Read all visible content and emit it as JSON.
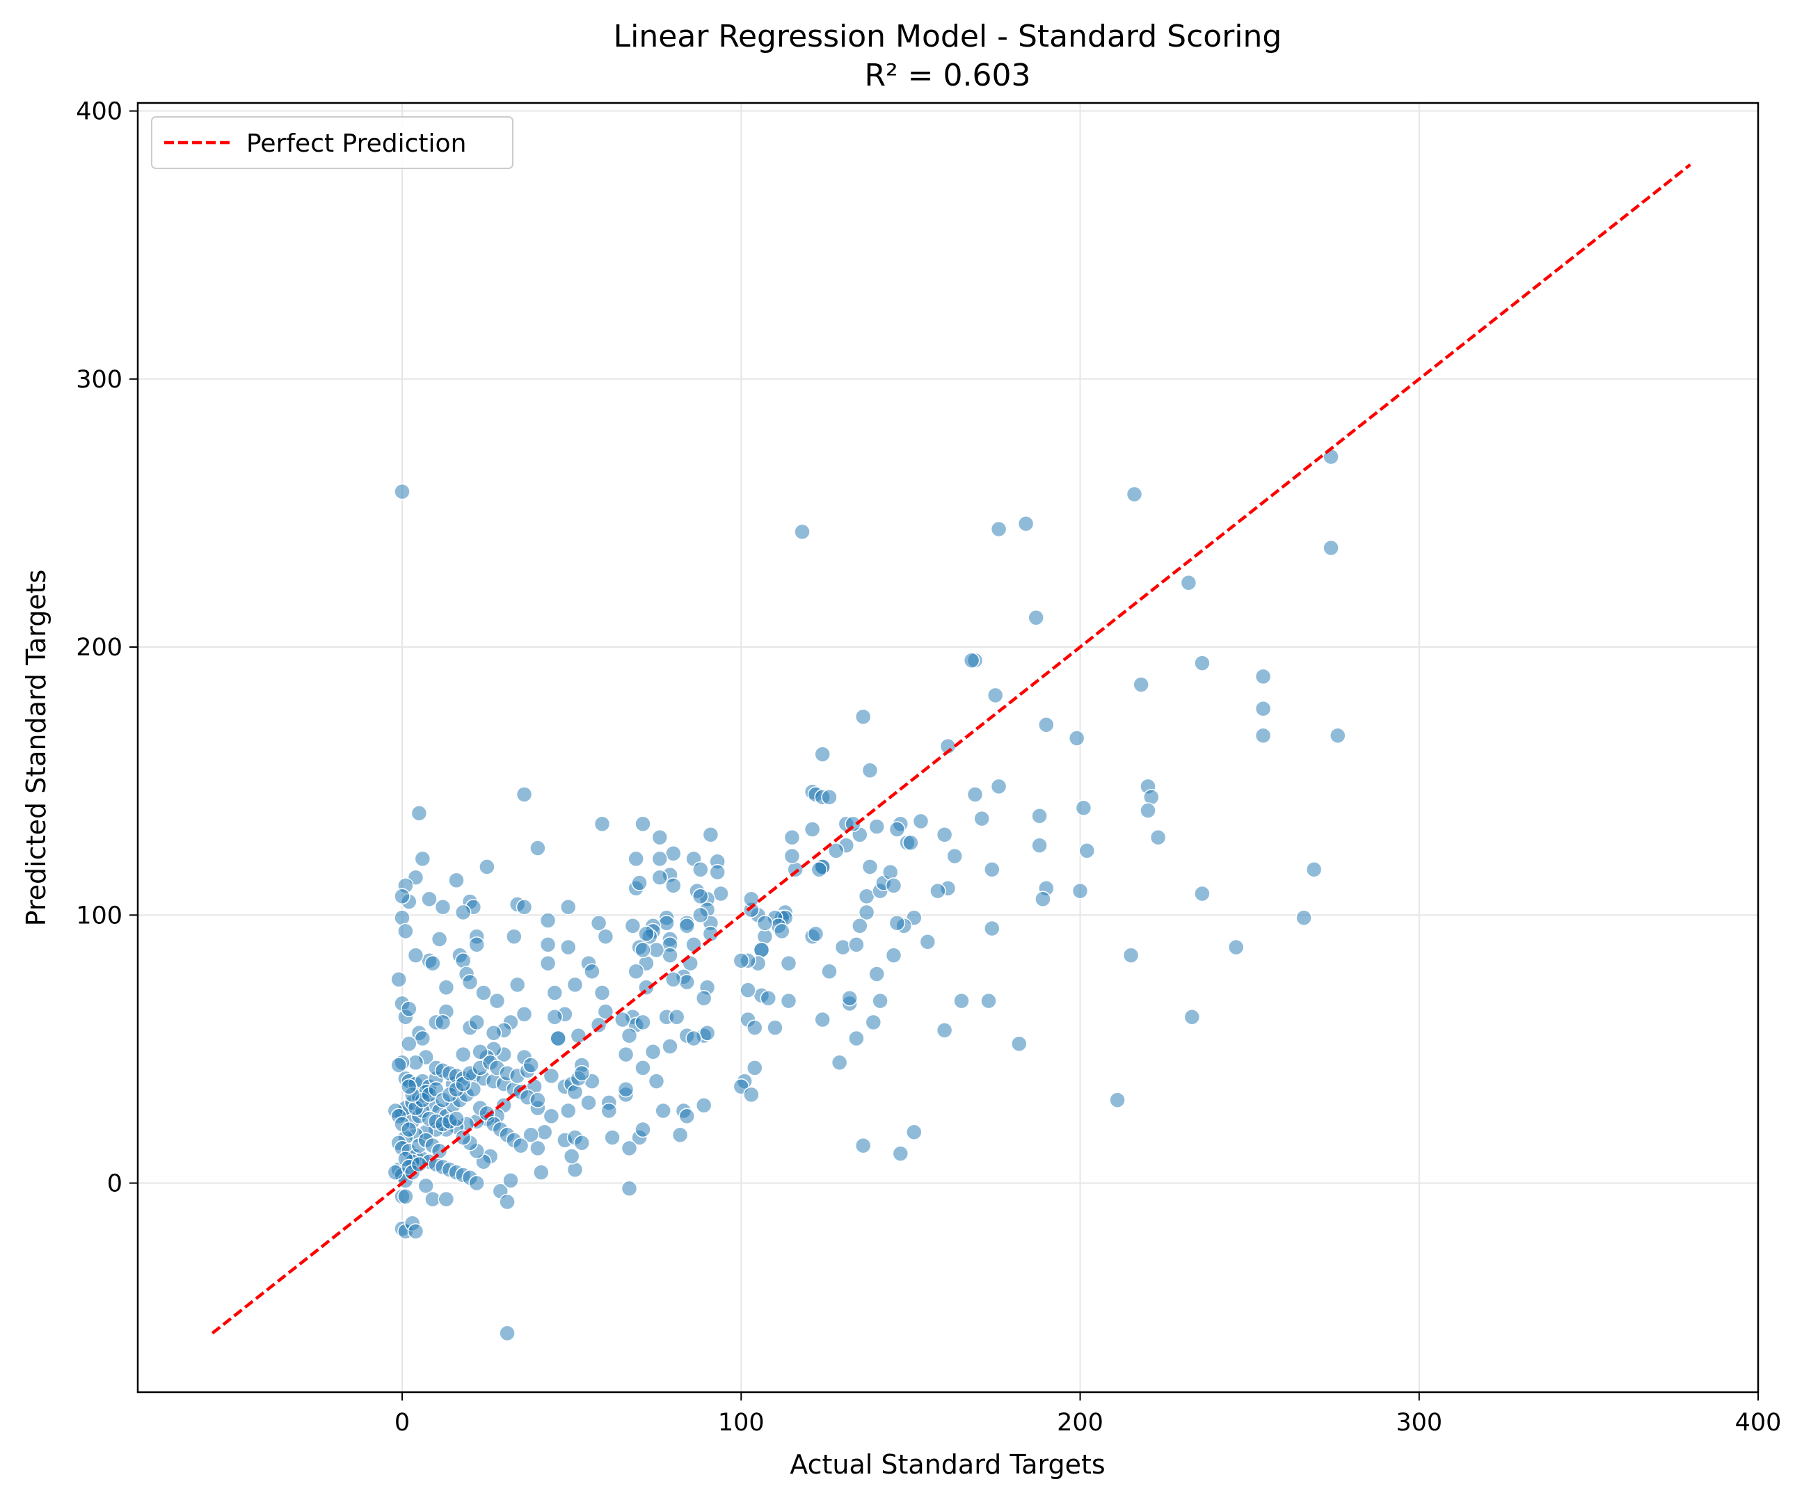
{
  "chart_data": {
    "type": "scatter",
    "title": "Linear Regression Model - Standard Scoring",
    "subtitle": "R² = 0.603",
    "xlabel": "Actual Standard Targets",
    "ylabel": "Predicted Standard Targets",
    "xlim": [
      -78,
      400
    ],
    "ylim": [
      -78,
      403
    ],
    "xticks": [
      0,
      100,
      200,
      300,
      400
    ],
    "yticks": [
      0,
      100,
      200,
      300,
      400
    ],
    "grid": true,
    "legend_position": "top-left",
    "colors": {
      "points": "#1f77b4",
      "reference_line": "#ff0000"
    },
    "reference_line": {
      "name": "Perfect Prediction",
      "x": [
        -56,
        380
      ],
      "y": [
        -56,
        380
      ]
    },
    "points": [
      [
        0,
        258
      ],
      [
        118,
        243
      ],
      [
        176,
        244
      ],
      [
        184,
        246
      ],
      [
        216,
        257
      ],
      [
        274,
        271
      ],
      [
        274,
        237
      ],
      [
        232,
        224
      ],
      [
        187,
        211
      ],
      [
        169,
        195
      ],
      [
        168,
        195
      ],
      [
        175,
        182
      ],
      [
        218,
        186
      ],
      [
        236,
        194
      ],
      [
        254,
        189
      ],
      [
        254,
        177
      ],
      [
        254,
        167
      ],
      [
        190,
        171
      ],
      [
        199,
        166
      ],
      [
        276,
        167
      ],
      [
        220,
        148
      ],
      [
        221,
        144
      ],
      [
        220,
        139
      ],
      [
        201,
        140
      ],
      [
        202,
        124
      ],
      [
        223,
        129
      ],
      [
        236,
        108
      ],
      [
        269,
        117
      ],
      [
        266,
        99
      ],
      [
        215,
        85
      ],
      [
        246,
        88
      ],
      [
        233,
        62
      ],
      [
        211,
        31
      ],
      [
        182,
        52
      ],
      [
        173,
        68
      ],
      [
        160,
        57
      ],
      [
        165,
        68
      ],
      [
        174,
        95
      ],
      [
        174,
        117
      ],
      [
        188,
        126
      ],
      [
        188,
        137
      ],
      [
        190,
        110
      ],
      [
        189,
        106
      ],
      [
        200,
        109
      ],
      [
        176,
        148
      ],
      [
        169,
        145
      ],
      [
        171,
        136
      ],
      [
        161,
        163
      ],
      [
        163,
        122
      ],
      [
        160,
        130
      ],
      [
        161,
        110
      ],
      [
        158,
        109
      ],
      [
        155,
        90
      ],
      [
        147,
        134
      ],
      [
        146,
        132
      ],
      [
        149,
        127
      ],
      [
        150,
        127
      ],
      [
        151,
        99
      ],
      [
        148,
        96
      ],
      [
        146,
        97
      ],
      [
        153,
        135
      ],
      [
        136,
        174
      ],
      [
        138,
        154
      ],
      [
        135,
        130
      ],
      [
        137,
        107
      ],
      [
        137,
        101
      ],
      [
        138,
        118
      ],
      [
        140,
        133
      ],
      [
        141,
        109
      ],
      [
        142,
        112
      ],
      [
        144,
        116
      ],
      [
        145,
        111
      ],
      [
        145,
        85
      ],
      [
        135,
        96
      ],
      [
        140,
        78
      ],
      [
        141,
        68
      ],
      [
        139,
        60
      ],
      [
        134,
        54
      ],
      [
        136,
        14
      ],
      [
        147,
        11
      ],
      [
        151,
        19
      ],
      [
        132,
        67
      ],
      [
        132,
        69
      ],
      [
        129,
        45
      ],
      [
        130,
        88
      ],
      [
        134,
        89
      ],
      [
        131,
        126
      ],
      [
        131,
        134
      ],
      [
        133,
        134
      ],
      [
        128,
        124
      ],
      [
        124,
        160
      ],
      [
        121,
        146
      ],
      [
        122,
        145
      ],
      [
        124,
        144
      ],
      [
        126,
        144
      ],
      [
        124,
        118
      ],
      [
        124,
        118
      ],
      [
        123,
        117
      ],
      [
        121,
        92
      ],
      [
        122,
        93
      ],
      [
        124,
        61
      ],
      [
        126,
        79
      ],
      [
        121,
        132
      ],
      [
        115,
        129
      ],
      [
        116,
        117
      ],
      [
        115,
        122
      ],
      [
        113,
        101
      ],
      [
        112,
        99
      ],
      [
        113,
        99
      ],
      [
        110,
        99
      ],
      [
        111,
        96
      ],
      [
        107,
        92
      ],
      [
        105,
        100
      ],
      [
        106,
        87
      ],
      [
        106,
        87
      ],
      [
        106,
        70
      ],
      [
        108,
        69
      ],
      [
        105,
        82
      ],
      [
        102,
        83
      ],
      [
        102,
        72
      ],
      [
        102,
        61
      ],
      [
        104,
        58
      ],
      [
        110,
        58
      ],
      [
        114,
        68
      ],
      [
        114,
        82
      ],
      [
        107,
        97
      ],
      [
        112,
        94
      ],
      [
        103,
        102
      ],
      [
        103,
        106
      ],
      [
        100,
        83
      ],
      [
        101,
        38
      ],
      [
        100,
        36
      ],
      [
        103,
        33
      ],
      [
        104,
        43
      ],
      [
        91,
        130
      ],
      [
        93,
        120
      ],
      [
        93,
        116
      ],
      [
        94,
        108
      ],
      [
        90,
        106
      ],
      [
        90,
        102
      ],
      [
        91,
        97
      ],
      [
        91,
        93
      ],
      [
        90,
        73
      ],
      [
        89,
        69
      ],
      [
        89,
        55
      ],
      [
        90,
        56
      ],
      [
        89,
        29
      ],
      [
        86,
        121
      ],
      [
        88,
        117
      ],
      [
        87,
        109
      ],
      [
        88,
        107
      ],
      [
        88,
        100
      ],
      [
        86,
        89
      ],
      [
        85,
        82
      ],
      [
        84,
        97
      ],
      [
        84,
        96
      ],
      [
        83,
        77
      ],
      [
        84,
        75
      ],
      [
        84,
        55
      ],
      [
        86,
        54
      ],
      [
        83,
        27
      ],
      [
        84,
        25
      ],
      [
        82,
        18
      ],
      [
        80,
        123
      ],
      [
        79,
        115
      ],
      [
        80,
        111
      ],
      [
        78,
        99
      ],
      [
        78,
        97
      ],
      [
        79,
        91
      ],
      [
        79,
        89
      ],
      [
        79,
        85
      ],
      [
        80,
        76
      ],
      [
        78,
        62
      ],
      [
        81,
        62
      ],
      [
        79,
        51
      ],
      [
        76,
        121
      ],
      [
        76,
        129
      ],
      [
        76,
        114
      ],
      [
        74,
        96
      ],
      [
        74,
        94
      ],
      [
        73,
        92
      ],
      [
        75,
        87
      ],
      [
        72,
        93
      ],
      [
        72,
        82
      ],
      [
        72,
        73
      ],
      [
        74,
        49
      ],
      [
        75,
        38
      ],
      [
        77,
        27
      ],
      [
        71,
        134
      ],
      [
        69,
        121
      ],
      [
        69,
        110
      ],
      [
        70,
        112
      ],
      [
        68,
        96
      ],
      [
        70,
        88
      ],
      [
        71,
        87
      ],
      [
        69,
        79
      ],
      [
        68,
        62
      ],
      [
        69,
        59
      ],
      [
        71,
        60
      ],
      [
        71,
        43
      ],
      [
        70,
        17
      ],
      [
        71,
        20
      ],
      [
        67,
        13
      ],
      [
        67,
        -2
      ],
      [
        66,
        33
      ],
      [
        66,
        35
      ],
      [
        66,
        48
      ],
      [
        67,
        55
      ],
      [
        65,
        61
      ],
      [
        61,
        30
      ],
      [
        62,
        17
      ],
      [
        61,
        27
      ],
      [
        59,
        134
      ],
      [
        58,
        97
      ],
      [
        60,
        92
      ],
      [
        55,
        82
      ],
      [
        56,
        79
      ],
      [
        59,
        71
      ],
      [
        60,
        64
      ],
      [
        58,
        59
      ],
      [
        56,
        38
      ],
      [
        55,
        30
      ],
      [
        53,
        44
      ],
      [
        52,
        55
      ],
      [
        51,
        74
      ],
      [
        49,
        103
      ],
      [
        49,
        88
      ],
      [
        48,
        63
      ],
      [
        46,
        54
      ],
      [
        46,
        54
      ],
      [
        45,
        62
      ],
      [
        45,
        71
      ],
      [
        43,
        82
      ],
      [
        43,
        98
      ],
      [
        43,
        89
      ],
      [
        44,
        40
      ],
      [
        48,
        36
      ],
      [
        50,
        37
      ],
      [
        51,
        34
      ],
      [
        52,
        39
      ],
      [
        53,
        41
      ],
      [
        49,
        27
      ],
      [
        48,
        16
      ],
      [
        51,
        17
      ],
      [
        53,
        15
      ],
      [
        51,
        5
      ],
      [
        50,
        10
      ],
      [
        44,
        25
      ],
      [
        42,
        19
      ],
      [
        41,
        4
      ],
      [
        38,
        18
      ],
      [
        40,
        13
      ],
      [
        40,
        28
      ],
      [
        39,
        36
      ],
      [
        36,
        145
      ],
      [
        40,
        125
      ],
      [
        34,
        104
      ],
      [
        36,
        103
      ],
      [
        33,
        92
      ],
      [
        36,
        63
      ],
      [
        36,
        47
      ],
      [
        34,
        74
      ],
      [
        32,
        60
      ],
      [
        30,
        48
      ],
      [
        28,
        68
      ],
      [
        30,
        57
      ],
      [
        27,
        56
      ],
      [
        27,
        50
      ],
      [
        25,
        47
      ],
      [
        25,
        118
      ],
      [
        24,
        71
      ],
      [
        22,
        92
      ],
      [
        22,
        89
      ],
      [
        20,
        105
      ],
      [
        21,
        103
      ],
      [
        18,
        101
      ],
      [
        16,
        113
      ],
      [
        17,
        85
      ],
      [
        18,
        83
      ],
      [
        19,
        78
      ],
      [
        20,
        75
      ],
      [
        20,
        58
      ],
      [
        22,
        60
      ],
      [
        23,
        49
      ],
      [
        18,
        48
      ],
      [
        15,
        37
      ],
      [
        12,
        103
      ],
      [
        11,
        91
      ],
      [
        13,
        73
      ],
      [
        13,
        64
      ],
      [
        10,
        60
      ],
      [
        12,
        60
      ],
      [
        8,
        106
      ],
      [
        8,
        83
      ],
      [
        9,
        82
      ],
      [
        6,
        121
      ],
      [
        5,
        138
      ],
      [
        4,
        114
      ],
      [
        2,
        105
      ],
      [
        1,
        111
      ],
      [
        0,
        107
      ],
      [
        0,
        99
      ],
      [
        1,
        94
      ],
      [
        4,
        85
      ],
      [
        -1,
        76
      ],
      [
        0,
        67
      ],
      [
        1,
        62
      ],
      [
        2,
        65
      ],
      [
        5,
        56
      ],
      [
        6,
        54
      ],
      [
        2,
        52
      ],
      [
        7,
        47
      ],
      [
        4,
        45
      ],
      [
        0,
        45
      ],
      [
        -1,
        44
      ],
      [
        1,
        39
      ],
      [
        2,
        38
      ],
      [
        4,
        37
      ],
      [
        6,
        38
      ],
      [
        8,
        36
      ],
      [
        10,
        39
      ],
      [
        10,
        43
      ],
      [
        12,
        42
      ],
      [
        14,
        41
      ],
      [
        16,
        40
      ],
      [
        18,
        39
      ],
      [
        21,
        40
      ],
      [
        24,
        39
      ],
      [
        27,
        38
      ],
      [
        30,
        37
      ],
      [
        33,
        35
      ],
      [
        35,
        34
      ],
      [
        37,
        32
      ],
      [
        40,
        31
      ],
      [
        30,
        29
      ],
      [
        28,
        25
      ],
      [
        25,
        24
      ],
      [
        22,
        23
      ],
      [
        19,
        22
      ],
      [
        16,
        21
      ],
      [
        13,
        20
      ],
      [
        10,
        20
      ],
      [
        7,
        19
      ],
      [
        4,
        18
      ],
      [
        1,
        17
      ],
      [
        -1,
        15
      ],
      [
        0,
        13
      ],
      [
        2,
        12
      ],
      [
        4,
        10
      ],
      [
        6,
        9
      ],
      [
        8,
        8
      ],
      [
        10,
        7
      ],
      [
        12,
        6
      ],
      [
        14,
        5
      ],
      [
        16,
        4
      ],
      [
        18,
        3
      ],
      [
        20,
        2
      ],
      [
        22,
        0
      ],
      [
        -1,
        5
      ],
      [
        0,
        3
      ],
      [
        1,
        1
      ],
      [
        3,
        8
      ],
      [
        5,
        14
      ],
      [
        7,
        16
      ],
      [
        9,
        14
      ],
      [
        11,
        12
      ],
      [
        0,
        26
      ],
      [
        1,
        28
      ],
      [
        3,
        30
      ],
      [
        5,
        32
      ],
      [
        7,
        34
      ],
      [
        9,
        29
      ],
      [
        11,
        27
      ],
      [
        13,
        25
      ],
      [
        15,
        29
      ],
      [
        17,
        31
      ],
      [
        19,
        33
      ],
      [
        21,
        35
      ],
      [
        23,
        28
      ],
      [
        25,
        26
      ],
      [
        27,
        22
      ],
      [
        29,
        20
      ],
      [
        31,
        18
      ],
      [
        33,
        16
      ],
      [
        35,
        14
      ],
      [
        26,
        10
      ],
      [
        24,
        8
      ],
      [
        22,
        12
      ],
      [
        20,
        15
      ],
      [
        18,
        17
      ],
      [
        -2,
        4
      ],
      [
        0,
        -5
      ],
      [
        1,
        -5
      ],
      [
        0,
        -17
      ],
      [
        1,
        -18
      ],
      [
        3,
        -15
      ],
      [
        4,
        -18
      ],
      [
        7,
        -1
      ],
      [
        9,
        -6
      ],
      [
        13,
        -6
      ],
      [
        29,
        -3
      ],
      [
        31,
        -7
      ],
      [
        31,
        -56
      ],
      [
        32,
        1
      ],
      [
        3,
        23
      ],
      [
        5,
        25
      ],
      [
        6,
        27
      ],
      [
        8,
        24
      ],
      [
        10,
        23
      ],
      [
        12,
        22
      ],
      [
        14,
        23
      ],
      [
        16,
        24
      ],
      [
        -2,
        27
      ],
      [
        -1,
        25
      ],
      [
        0,
        22
      ],
      [
        2,
        20
      ],
      [
        4,
        28
      ],
      [
        6,
        31
      ],
      [
        8,
        33
      ],
      [
        10,
        35
      ],
      [
        12,
        31
      ],
      [
        14,
        33
      ],
      [
        16,
        35
      ],
      [
        18,
        37
      ],
      [
        20,
        41
      ],
      [
        23,
        43
      ],
      [
        26,
        45
      ],
      [
        28,
        43
      ],
      [
        31,
        41
      ],
      [
        34,
        40
      ],
      [
        37,
        42
      ],
      [
        38,
        44
      ],
      [
        1,
        9
      ],
      [
        2,
        6
      ],
      [
        3,
        4
      ],
      [
        5,
        7
      ],
      [
        3,
        33
      ],
      [
        2,
        36
      ]
    ]
  }
}
